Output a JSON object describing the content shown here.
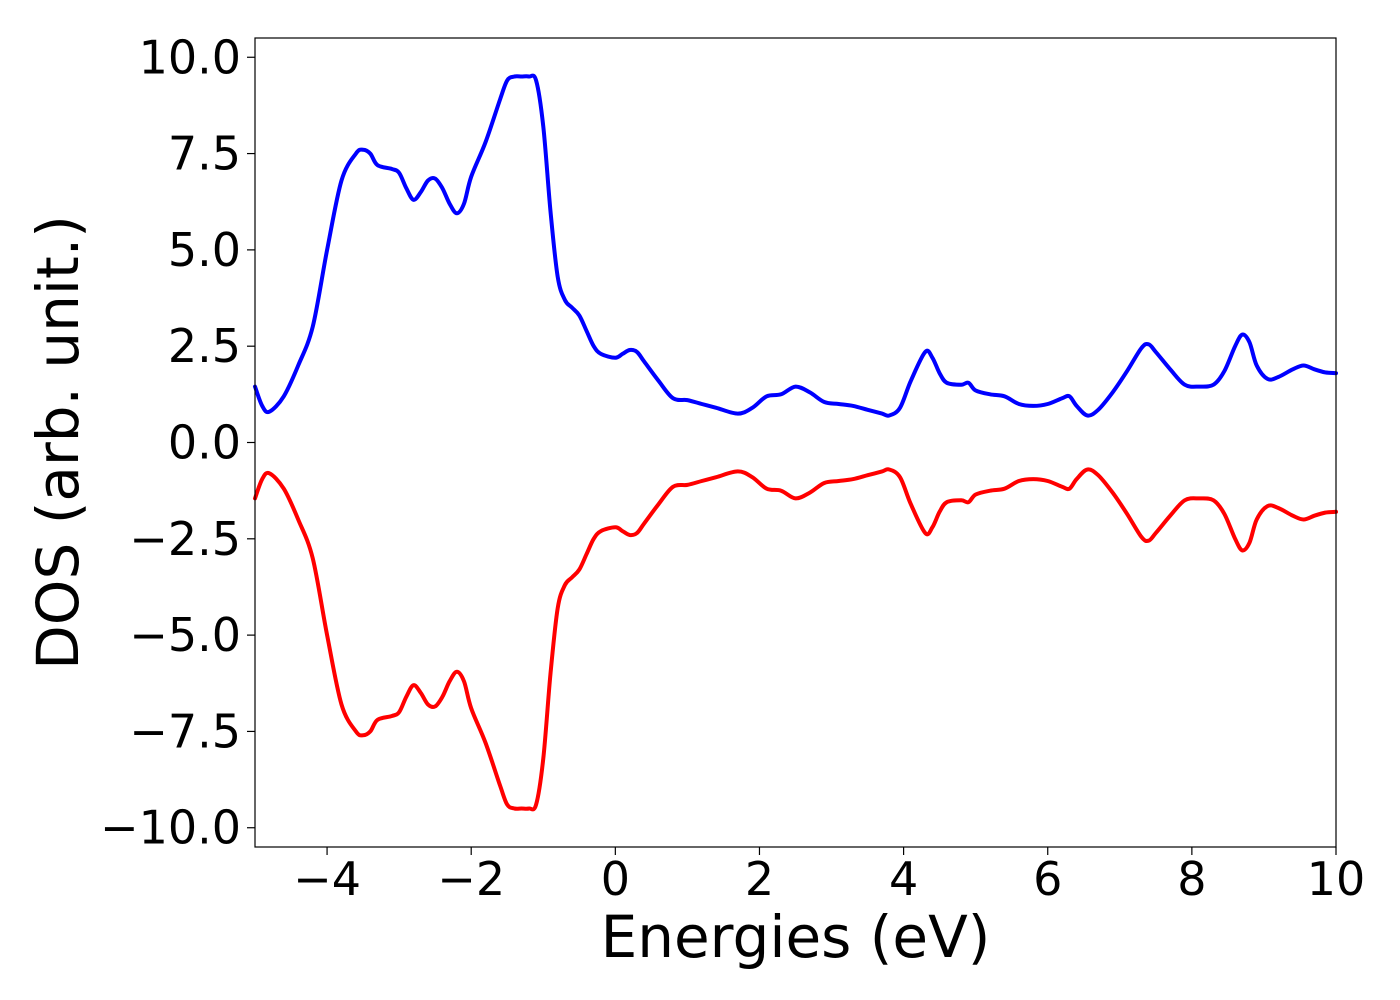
{
  "chart_data": {
    "type": "line",
    "title": "",
    "xlabel": "Energies (eV)",
    "ylabel": "DOS (arb. unit.)",
    "xlim": [
      -5,
      10
    ],
    "ylim": [
      -10.5,
      10.5
    ],
    "xticks": [
      -4,
      -2,
      0,
      2,
      4,
      6,
      8,
      10
    ],
    "xtick_labels": [
      "−4",
      "−2",
      "0",
      "2",
      "4",
      "6",
      "8",
      "10"
    ],
    "yticks": [
      10,
      7.5,
      5,
      2.5,
      0,
      -2.5,
      -5,
      -7.5,
      -10
    ],
    "ytick_labels": [
      "10.0",
      "7.5",
      "5.0",
      "2.5",
      "0.0",
      "−2.5",
      "−5.0",
      "−7.5",
      "−10.0"
    ],
    "grid": false,
    "series": [
      {
        "color": "#0000ff",
        "points": [
          [
            -5.0,
            1.45
          ],
          [
            -4.9,
            0.95
          ],
          [
            -4.8,
            0.8
          ],
          [
            -4.6,
            1.2
          ],
          [
            -4.4,
            2.0
          ],
          [
            -4.2,
            3.0
          ],
          [
            -4.0,
            5.0
          ],
          [
            -3.8,
            6.8
          ],
          [
            -3.6,
            7.5
          ],
          [
            -3.5,
            7.6
          ],
          [
            -3.4,
            7.5
          ],
          [
            -3.3,
            7.2
          ],
          [
            -3.1,
            7.1
          ],
          [
            -3.0,
            7.0
          ],
          [
            -2.9,
            6.6
          ],
          [
            -2.8,
            6.3
          ],
          [
            -2.7,
            6.5
          ],
          [
            -2.6,
            6.8
          ],
          [
            -2.5,
            6.85
          ],
          [
            -2.4,
            6.6
          ],
          [
            -2.3,
            6.2
          ],
          [
            -2.2,
            5.95
          ],
          [
            -2.1,
            6.2
          ],
          [
            -2.0,
            6.9
          ],
          [
            -1.8,
            7.8
          ],
          [
            -1.6,
            8.9
          ],
          [
            -1.5,
            9.4
          ],
          [
            -1.4,
            9.5
          ],
          [
            -1.3,
            9.5
          ],
          [
            -1.2,
            9.5
          ],
          [
            -1.1,
            9.4
          ],
          [
            -1.0,
            8.2
          ],
          [
            -0.9,
            6.0
          ],
          [
            -0.8,
            4.3
          ],
          [
            -0.7,
            3.7
          ],
          [
            -0.6,
            3.5
          ],
          [
            -0.5,
            3.3
          ],
          [
            -0.4,
            2.9
          ],
          [
            -0.3,
            2.5
          ],
          [
            -0.2,
            2.3
          ],
          [
            0.0,
            2.2
          ],
          [
            0.1,
            2.3
          ],
          [
            0.2,
            2.4
          ],
          [
            0.3,
            2.35
          ],
          [
            0.4,
            2.1
          ],
          [
            0.6,
            1.6
          ],
          [
            0.8,
            1.15
          ],
          [
            1.0,
            1.1
          ],
          [
            1.2,
            1.0
          ],
          [
            1.4,
            0.9
          ],
          [
            1.7,
            0.75
          ],
          [
            1.9,
            0.9
          ],
          [
            2.1,
            1.2
          ],
          [
            2.3,
            1.25
          ],
          [
            2.5,
            1.45
          ],
          [
            2.7,
            1.3
          ],
          [
            2.9,
            1.05
          ],
          [
            3.1,
            1.0
          ],
          [
            3.3,
            0.95
          ],
          [
            3.5,
            0.85
          ],
          [
            3.7,
            0.75
          ],
          [
            3.8,
            0.7
          ],
          [
            3.95,
            0.9
          ],
          [
            4.1,
            1.6
          ],
          [
            4.3,
            2.35
          ],
          [
            4.4,
            2.2
          ],
          [
            4.5,
            1.8
          ],
          [
            4.6,
            1.55
          ],
          [
            4.8,
            1.5
          ],
          [
            4.9,
            1.55
          ],
          [
            5.0,
            1.35
          ],
          [
            5.2,
            1.25
          ],
          [
            5.4,
            1.2
          ],
          [
            5.6,
            1.0
          ],
          [
            5.8,
            0.95
          ],
          [
            6.0,
            1.0
          ],
          [
            6.2,
            1.15
          ],
          [
            6.3,
            1.2
          ],
          [
            6.4,
            0.95
          ],
          [
            6.55,
            0.7
          ],
          [
            6.7,
            0.85
          ],
          [
            6.9,
            1.3
          ],
          [
            7.1,
            1.85
          ],
          [
            7.3,
            2.45
          ],
          [
            7.4,
            2.55
          ],
          [
            7.5,
            2.35
          ],
          [
            7.7,
            1.9
          ],
          [
            7.9,
            1.5
          ],
          [
            8.1,
            1.45
          ],
          [
            8.3,
            1.5
          ],
          [
            8.45,
            1.85
          ],
          [
            8.6,
            2.5
          ],
          [
            8.7,
            2.8
          ],
          [
            8.8,
            2.6
          ],
          [
            8.9,
            2.0
          ],
          [
            9.05,
            1.65
          ],
          [
            9.2,
            1.7
          ],
          [
            9.4,
            1.9
          ],
          [
            9.55,
            2.0
          ],
          [
            9.7,
            1.9
          ],
          [
            9.85,
            1.82
          ],
          [
            10.0,
            1.8
          ]
        ]
      },
      {
        "color": "#ff0000",
        "points": [
          [
            -5.0,
            -1.45
          ],
          [
            -4.9,
            -0.95
          ],
          [
            -4.8,
            -0.8
          ],
          [
            -4.6,
            -1.2
          ],
          [
            -4.4,
            -2.0
          ],
          [
            -4.2,
            -3.0
          ],
          [
            -4.0,
            -5.0
          ],
          [
            -3.8,
            -6.8
          ],
          [
            -3.6,
            -7.5
          ],
          [
            -3.5,
            -7.6
          ],
          [
            -3.4,
            -7.5
          ],
          [
            -3.3,
            -7.2
          ],
          [
            -3.1,
            -7.1
          ],
          [
            -3.0,
            -7.0
          ],
          [
            -2.9,
            -6.6
          ],
          [
            -2.8,
            -6.3
          ],
          [
            -2.7,
            -6.5
          ],
          [
            -2.6,
            -6.8
          ],
          [
            -2.5,
            -6.85
          ],
          [
            -2.4,
            -6.6
          ],
          [
            -2.3,
            -6.2
          ],
          [
            -2.2,
            -5.95
          ],
          [
            -2.1,
            -6.2
          ],
          [
            -2.0,
            -6.9
          ],
          [
            -1.8,
            -7.8
          ],
          [
            -1.6,
            -8.9
          ],
          [
            -1.5,
            -9.4
          ],
          [
            -1.4,
            -9.5
          ],
          [
            -1.3,
            -9.5
          ],
          [
            -1.2,
            -9.5
          ],
          [
            -1.1,
            -9.4
          ],
          [
            -1.0,
            -8.2
          ],
          [
            -0.9,
            -6.0
          ],
          [
            -0.8,
            -4.3
          ],
          [
            -0.7,
            -3.7
          ],
          [
            -0.6,
            -3.5
          ],
          [
            -0.5,
            -3.3
          ],
          [
            -0.4,
            -2.9
          ],
          [
            -0.3,
            -2.5
          ],
          [
            -0.2,
            -2.3
          ],
          [
            0.0,
            -2.2
          ],
          [
            0.1,
            -2.3
          ],
          [
            0.2,
            -2.4
          ],
          [
            0.3,
            -2.35
          ],
          [
            0.4,
            -2.1
          ],
          [
            0.6,
            -1.6
          ],
          [
            0.8,
            -1.15
          ],
          [
            1.0,
            -1.1
          ],
          [
            1.2,
            -1.0
          ],
          [
            1.4,
            -0.9
          ],
          [
            1.7,
            -0.75
          ],
          [
            1.9,
            -0.9
          ],
          [
            2.1,
            -1.2
          ],
          [
            2.3,
            -1.25
          ],
          [
            2.5,
            -1.45
          ],
          [
            2.7,
            -1.3
          ],
          [
            2.9,
            -1.05
          ],
          [
            3.1,
            -1.0
          ],
          [
            3.3,
            -0.95
          ],
          [
            3.5,
            -0.85
          ],
          [
            3.7,
            -0.75
          ],
          [
            3.8,
            -0.7
          ],
          [
            3.95,
            -0.9
          ],
          [
            4.1,
            -1.6
          ],
          [
            4.3,
            -2.35
          ],
          [
            4.4,
            -2.2
          ],
          [
            4.5,
            -1.8
          ],
          [
            4.6,
            -1.55
          ],
          [
            4.8,
            -1.5
          ],
          [
            4.9,
            -1.55
          ],
          [
            5.0,
            -1.35
          ],
          [
            5.2,
            -1.25
          ],
          [
            5.4,
            -1.2
          ],
          [
            5.6,
            -1.0
          ],
          [
            5.8,
            -0.95
          ],
          [
            6.0,
            -1.0
          ],
          [
            6.2,
            -1.15
          ],
          [
            6.3,
            -1.2
          ],
          [
            6.4,
            -0.95
          ],
          [
            6.55,
            -0.7
          ],
          [
            6.7,
            -0.85
          ],
          [
            6.9,
            -1.3
          ],
          [
            7.1,
            -1.85
          ],
          [
            7.3,
            -2.45
          ],
          [
            7.4,
            -2.55
          ],
          [
            7.5,
            -2.35
          ],
          [
            7.7,
            -1.9
          ],
          [
            7.9,
            -1.5
          ],
          [
            8.1,
            -1.45
          ],
          [
            8.3,
            -1.5
          ],
          [
            8.45,
            -1.85
          ],
          [
            8.6,
            -2.5
          ],
          [
            8.7,
            -2.8
          ],
          [
            8.8,
            -2.6
          ],
          [
            8.9,
            -2.0
          ],
          [
            9.05,
            -1.65
          ],
          [
            9.2,
            -1.7
          ],
          [
            9.4,
            -1.9
          ],
          [
            9.55,
            -2.0
          ],
          [
            9.7,
            -1.9
          ],
          [
            9.85,
            -1.82
          ],
          [
            10.0,
            -1.8
          ]
        ]
      }
    ]
  }
}
